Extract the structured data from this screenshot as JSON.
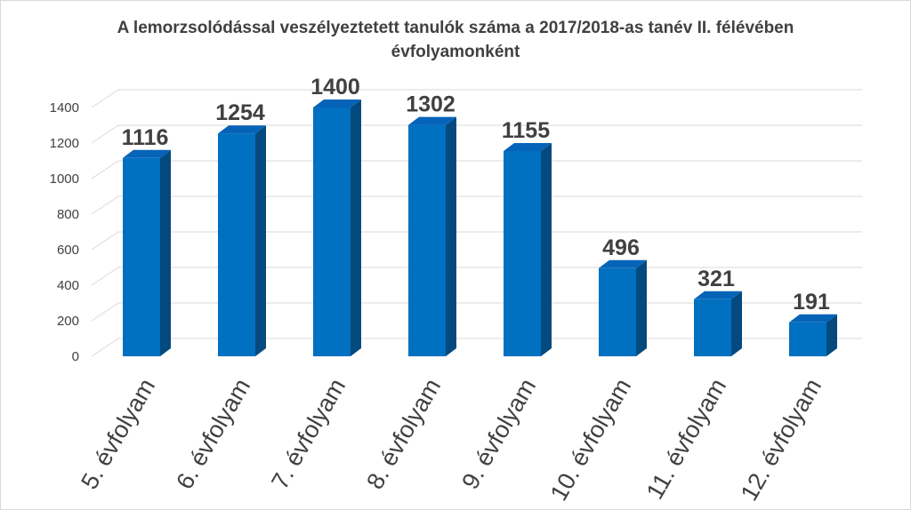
{
  "chart_data": {
    "type": "bar",
    "title_lines": [
      "A lemorzsolódással veszélyeztetett tanulók száma a 2017/2018-as tanév II. félévében",
      "évfolyamonként"
    ],
    "categories": [
      "5. évfolyam",
      "6. évfolyam",
      "7. évfolyam",
      "8. évfolyam",
      "9. évfolyam",
      "10. évfolyam",
      "11. évfolyam",
      "12. évfolyam"
    ],
    "values": [
      1116,
      1254,
      1400,
      1302,
      1155,
      496,
      321,
      191
    ],
    "data_labels": [
      "1116",
      "1254",
      "1400",
      "1302",
      "1155",
      "496",
      "321",
      "191"
    ],
    "yticks": [
      "0",
      "200",
      "400",
      "600",
      "800",
      "1000",
      "1200",
      "1400"
    ],
    "ylim": [
      0,
      1400
    ],
    "grid": true,
    "legend": "none",
    "style": "3d-column",
    "colors": {
      "front": "#0070C0",
      "side": "#044A7F",
      "top": "#0563B8",
      "text": "#404040",
      "grid": "#d9d9d9"
    }
  }
}
